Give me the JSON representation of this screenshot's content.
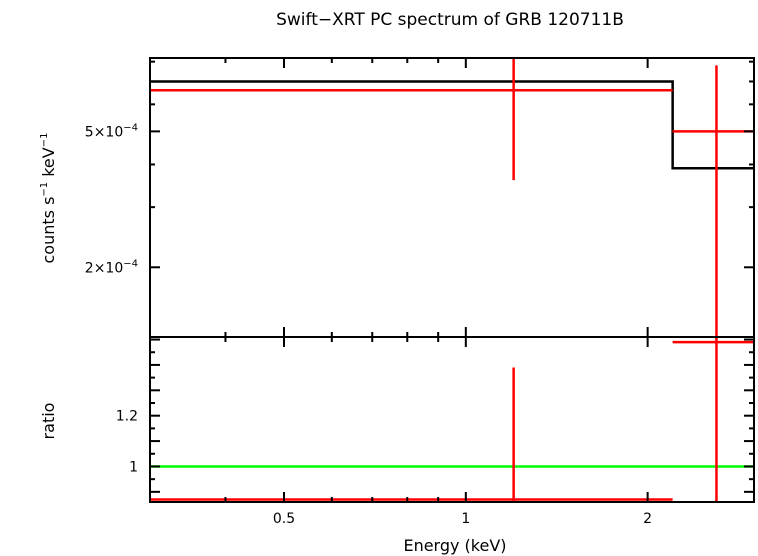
{
  "chart_data": [
    {
      "panel": "spectrum",
      "type": "scatter",
      "title": "Swift−XRT PC spectrum of GRB 120711B",
      "xlabel": "Energy (keV)",
      "ylabel_main": "counts s",
      "ylabel_sup1": "−1",
      "ylabel_mid": " keV",
      "ylabel_sup2": "−1",
      "xscale": "log",
      "yscale": "log",
      "xlim": [
        0.3,
        3.0
      ],
      "ylim": [
        0.000125,
        0.00082
      ],
      "yticks": [
        {
          "value": 0.0005,
          "mantissa": "5×10",
          "exp": "−4"
        },
        {
          "value": 0.0002,
          "mantissa": "2×10",
          "exp": "−4"
        }
      ],
      "data": [
        {
          "x": 1.2,
          "xlo": 0.3,
          "xhi": 2.2,
          "y": 0.00066,
          "ylo": 0.00036,
          "yhi": 0.00082
        },
        {
          "x": 2.6,
          "xlo": 2.2,
          "xhi": 3.0,
          "y": 0.0005,
          "ylo": 0.000125,
          "yhi": 0.00078
        }
      ],
      "model": [
        {
          "xlo": 0.3,
          "xhi": 2.2,
          "y": 0.0007
        },
        {
          "xlo": 2.2,
          "xhi": 3.0,
          "y": 0.00039
        }
      ],
      "data_color": "#ff0000",
      "model_color": "#000000"
    },
    {
      "panel": "ratio",
      "type": "scatter",
      "ylabel": "ratio",
      "xscale": "log",
      "xlim": [
        0.3,
        3.0
      ],
      "ylim": [
        0.86,
        1.51
      ],
      "xticks": [
        {
          "value": 0.5,
          "label": "0.5"
        },
        {
          "value": 1,
          "label": "1"
        },
        {
          "value": 2,
          "label": "2"
        }
      ],
      "yticks": [
        {
          "value": 1.2,
          "label": "1.2"
        },
        {
          "value": 1,
          "label": "1"
        }
      ],
      "reference": {
        "y": 1.0,
        "color": "#00ff00"
      },
      "data": [
        {
          "x": 1.2,
          "xlo": 0.3,
          "xhi": 2.2,
          "y": 0.87,
          "ylo": 0.86,
          "yhi": 1.39
        },
        {
          "x": 2.6,
          "xlo": 2.2,
          "xhi": 3.0,
          "y": 1.49,
          "ylo": 0.86,
          "yhi": 1.51
        }
      ],
      "data_color": "#ff0000"
    }
  ]
}
